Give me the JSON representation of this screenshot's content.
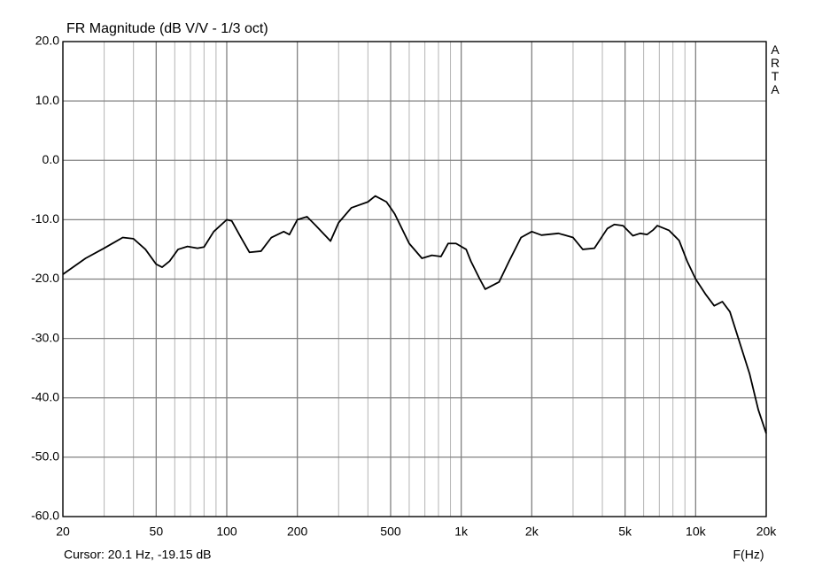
{
  "chart_data": {
    "type": "line",
    "title": "FR Magnitude (dB V/V - 1/3 oct)",
    "side_label": "ARTA",
    "cursor_label": "Cursor: 20.1 Hz, -19.15 dB",
    "xlabel": "F(Hz)",
    "xscale": "log",
    "xlim": [
      20,
      20000
    ],
    "ylim": [
      -60,
      20
    ],
    "grid": true,
    "xticks": [
      20,
      50,
      100,
      200,
      500,
      {
        "value": 1000,
        "label": "1k"
      },
      {
        "value": 2000,
        "label": "2k"
      },
      {
        "value": 5000,
        "label": "5k"
      },
      {
        "value": 10000,
        "label": "10k"
      },
      {
        "value": 20000,
        "label": "20k"
      }
    ],
    "x_minor_ticks": [
      30,
      40,
      60,
      70,
      80,
      90,
      300,
      400,
      600,
      700,
      800,
      900,
      3000,
      4000,
      6000,
      7000,
      8000,
      9000
    ],
    "yticks": [
      {
        "value": 20,
        "label": "20.0"
      },
      {
        "value": 10,
        "label": "10.0"
      },
      {
        "value": 0,
        "label": "0.0"
      },
      {
        "value": -10,
        "label": "-10.0"
      },
      {
        "value": -20,
        "label": "-20.0"
      },
      {
        "value": -30,
        "label": "-30.0"
      },
      {
        "value": -40,
        "label": "-40.0"
      },
      {
        "value": -50,
        "label": "-50.0"
      },
      {
        "value": -60,
        "label": "-60.0"
      }
    ],
    "series": [
      {
        "color": "#000000",
        "x": [
          20,
          25,
          30,
          36,
          40,
          45,
          50,
          53,
          57,
          62,
          68,
          75,
          80,
          88,
          100,
          105,
          115,
          125,
          140,
          155,
          175,
          185,
          200,
          220,
          240,
          277,
          300,
          340,
          400,
          430,
          480,
          520,
          600,
          680,
          750,
          820,
          880,
          950,
          1050,
          1100,
          1200,
          1266,
          1450,
          1600,
          1800,
          2000,
          2200,
          2600,
          3000,
          3300,
          3700,
          4200,
          4500,
          4900,
          5400,
          5800,
          6200,
          6600,
          6860,
          7700,
          8500,
          9200,
          10000,
          11000,
          12000,
          13000,
          14000,
          15500,
          17000,
          18500,
          20000
        ],
        "values": [
          -19.2,
          -16.5,
          -14.8,
          -13,
          -13.2,
          -15,
          -17.5,
          -18,
          -17,
          -15,
          -14.5,
          -14.8,
          -14.6,
          -12,
          -10,
          -10.2,
          -13,
          -15.5,
          -15.3,
          -13,
          -12,
          -12.5,
          -10,
          -9.5,
          -11,
          -13.6,
          -10.5,
          -8,
          -7,
          -6,
          -7,
          -9,
          -14,
          -16.5,
          -16,
          -16.2,
          -14,
          -14,
          -15,
          -17,
          -20,
          -21.7,
          -20.5,
          -17,
          -13,
          -12,
          -12.6,
          -12.3,
          -13,
          -15,
          -14.8,
          -11.5,
          -10.8,
          -11,
          -12.7,
          -12.3,
          -12.5,
          -11.7,
          -11,
          -11.8,
          -13.5,
          -17,
          -20,
          -22.5,
          -24.5,
          -23.8,
          -25.5,
          -31,
          -36,
          -42,
          -46
        ]
      }
    ]
  }
}
